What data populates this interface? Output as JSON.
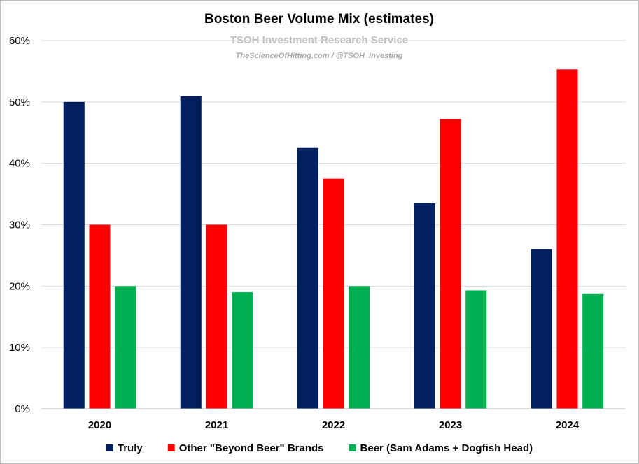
{
  "chart_data": {
    "type": "bar",
    "title": "Boston Beer Volume Mix (estimates)",
    "subtitle": "TSOH Investment Research Service",
    "subtitle2": "TheScienceOfHitting.com / @TSOH_Investing",
    "categories": [
      "2020",
      "2021",
      "2022",
      "2023",
      "2024"
    ],
    "series": [
      {
        "name": "Truly",
        "color": "#002060",
        "values": [
          50.0,
          50.9,
          42.5,
          33.5,
          26.0
        ]
      },
      {
        "name": "Other \"Beyond Beer\" Brands",
        "color": "#ff0000",
        "values": [
          30.0,
          30.0,
          37.5,
          47.2,
          55.3
        ]
      },
      {
        "name": "Beer (Sam Adams + Dogfish Head)",
        "color": "#00b050",
        "values": [
          20.0,
          19.0,
          20.0,
          19.3,
          18.7
        ]
      }
    ],
    "yticks": [
      "0%",
      "10%",
      "20%",
      "30%",
      "40%",
      "50%",
      "60%"
    ],
    "ylim": [
      0,
      60
    ],
    "xlabel": "",
    "ylabel": "",
    "grid": true,
    "legend": "bottom"
  }
}
